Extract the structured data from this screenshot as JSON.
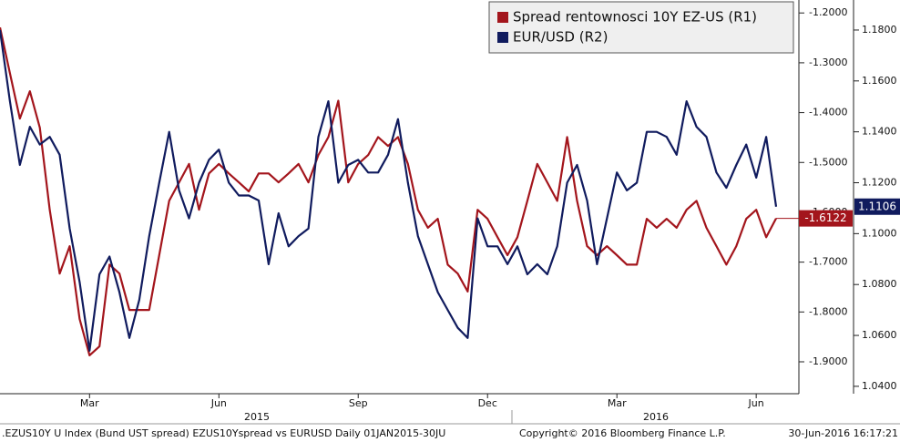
{
  "chart_data": {
    "type": "line",
    "categories": [
      null,
      null,
      null,
      null,
      null,
      null,
      null,
      null,
      null,
      "Mar",
      null,
      null,
      null,
      null,
      null,
      null,
      null,
      null,
      null,
      null,
      null,
      null,
      "Jun",
      null,
      null,
      null,
      null,
      null,
      null,
      null,
      null,
      null,
      null,
      null,
      null,
      null,
      "Sep",
      null,
      null,
      null,
      null,
      null,
      null,
      null,
      null,
      null,
      null,
      null,
      null,
      "Dec",
      null,
      null,
      null,
      null,
      null,
      null,
      null,
      null,
      null,
      null,
      null,
      null,
      "Mar",
      null,
      null,
      null,
      null,
      null,
      null,
      null,
      null,
      null,
      null,
      null,
      null,
      null,
      "Jun",
      null,
      null
    ],
    "year_labels": [
      "2015",
      "2016"
    ],
    "series": [
      {
        "name": "Spread rentownosci 10Y EZ-US (R1)",
        "color": "#a3151c",
        "axis": "y",
        "last_label": "-1.6122",
        "values": [
          -1.229,
          -1.321,
          -1.412,
          -1.357,
          -1.43,
          -1.595,
          -1.723,
          -1.668,
          -1.814,
          -1.887,
          -1.869,
          -1.705,
          -1.723,
          -1.796,
          -1.796,
          -1.796,
          -1.686,
          -1.577,
          -1.54,
          -1.503,
          -1.595,
          -1.522,
          -1.503,
          -1.522,
          -1.54,
          -1.558,
          -1.522,
          -1.522,
          -1.54,
          -1.522,
          -1.503,
          -1.54,
          -1.485,
          -1.449,
          -1.376,
          -1.54,
          -1.503,
          -1.485,
          -1.449,
          -1.467,
          -1.449,
          -1.503,
          -1.595,
          -1.631,
          -1.613,
          -1.705,
          -1.723,
          -1.759,
          -1.595,
          -1.613,
          -1.65,
          -1.686,
          -1.65,
          -1.577,
          -1.503,
          -1.54,
          -1.577,
          -1.449,
          -1.577,
          -1.668,
          -1.686,
          -1.668,
          -1.686,
          -1.705,
          -1.705,
          -1.613,
          -1.631,
          -1.613,
          -1.631,
          -1.595,
          -1.577,
          -1.631,
          -1.668,
          -1.705,
          -1.668,
          -1.613,
          -1.595,
          -1.65,
          -1.6122
        ]
      },
      {
        "name": "EUR/USD (R2)",
        "color": "#101b5e",
        "axis": "y2",
        "last_label": "1.1106",
        "values": [
          1.18,
          1.152,
          1.127,
          1.142,
          1.135,
          1.138,
          1.131,
          1.102,
          1.081,
          1.054,
          1.084,
          1.091,
          1.077,
          1.059,
          1.074,
          1.099,
          1.12,
          1.14,
          1.117,
          1.106,
          1.12,
          1.129,
          1.133,
          1.12,
          1.115,
          1.115,
          1.113,
          1.088,
          1.108,
          1.095,
          1.099,
          1.102,
          1.138,
          1.152,
          1.12,
          1.127,
          1.129,
          1.124,
          1.124,
          1.131,
          1.145,
          1.12,
          1.099,
          1.088,
          1.077,
          1.07,
          1.063,
          1.059,
          1.106,
          1.095,
          1.095,
          1.088,
          1.095,
          1.084,
          1.088,
          1.084,
          1.095,
          1.12,
          1.127,
          1.113,
          1.088,
          1.106,
          1.124,
          1.117,
          1.12,
          1.14,
          1.14,
          1.138,
          1.131,
          1.152,
          1.142,
          1.138,
          1.124,
          1.118,
          1.127,
          1.135,
          1.122,
          1.138,
          1.1106
        ]
      }
    ],
    "ylim": [
      -1.964,
      -1.174
    ],
    "yticks": [
      {
        "value": -1.2,
        "label": "-1.2000"
      },
      {
        "value": -1.3,
        "label": "-1.3000"
      },
      {
        "value": -1.4,
        "label": "-1.4000"
      },
      {
        "value": -1.5,
        "label": "-1.5000"
      },
      {
        "value": -1.6,
        "label": "-1.6000"
      },
      {
        "value": -1.7,
        "label": "-1.7000"
      },
      {
        "value": -1.8,
        "label": "-1.8000"
      },
      {
        "value": -1.9,
        "label": "-1.9000"
      }
    ],
    "y2lim": [
      1.0371,
      1.1918
    ],
    "y2ticks": [
      {
        "value": 1.18,
        "label": "1.1800"
      },
      {
        "value": 1.16,
        "label": "1.1600"
      },
      {
        "value": 1.14,
        "label": "1.1400"
      },
      {
        "value": 1.12,
        "label": "1.1200"
      },
      {
        "value": 1.1,
        "label": "1.1000"
      },
      {
        "value": 1.08,
        "label": "1.0800"
      },
      {
        "value": 1.06,
        "label": "1.0600"
      },
      {
        "value": 1.04,
        "label": "1.0400"
      }
    ],
    "footer": {
      "source": ".EZUS10Y U Index (Bund UST spread) EZUS10Yspread vs EURUSD  Daily 01JAN2015-30JU",
      "copyright": "Copyright© 2016 Bloomberg Finance L.P.",
      "timestamp": "30-Jun-2016 16:17:21"
    }
  }
}
